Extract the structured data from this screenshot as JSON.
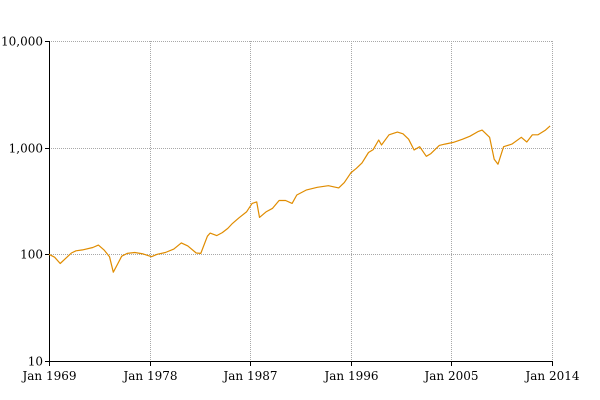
{
  "chart_data": {
    "type": "line",
    "title": "",
    "xlabel": "",
    "ylabel": "",
    "yscale": "log",
    "ylim": [
      10,
      10000
    ],
    "xlim": [
      "1969-01",
      "2014-01"
    ],
    "grid": true,
    "legend": "none",
    "x_ticks": [
      "Jan 1969",
      "Jan 1978",
      "Jan 1987",
      "Jan 1996",
      "Jan 2005",
      "Jan 2014"
    ],
    "y_ticks": [
      "10",
      "100",
      "1,000",
      "10,000"
    ],
    "y_tick_values": [
      10,
      100,
      1000,
      10000
    ],
    "colors": {
      "series": "#e08c00",
      "grid": "#a8a8a8",
      "axis": "#000000"
    },
    "series": [
      {
        "x": [
          "1969-01",
          "1969-07",
          "1970-01",
          "1970-06",
          "1971-01",
          "1971-06",
          "1972-01",
          "1972-12",
          "1973-06",
          "1973-12",
          "1974-06",
          "1974-10",
          "1975-03",
          "1975-07",
          "1976-01",
          "1976-09",
          "1977-06",
          "1978-03",
          "1978-09",
          "1979-06",
          "1980-03",
          "1980-11",
          "1981-06",
          "1982-03",
          "1982-08",
          "1983-03",
          "1983-06",
          "1984-01",
          "1984-07",
          "1985-01",
          "1985-06",
          "1986-01",
          "1986-09",
          "1987-03",
          "1987-08",
          "1987-11",
          "1988-06",
          "1989-01",
          "1989-08",
          "1990-03",
          "1990-10",
          "1991-03",
          "1992-01",
          "1993-01",
          "1994-01",
          "1994-12",
          "1995-06",
          "1996-01",
          "1996-07",
          "1997-01",
          "1997-08",
          "1998-01",
          "1998-07",
          "1998-10",
          "1999-06",
          "2000-03",
          "2000-09",
          "2001-03",
          "2001-09",
          "2002-03",
          "2002-10",
          "2003-03",
          "2003-12",
          "2004-06",
          "2005-03",
          "2006-01",
          "2006-09",
          "2007-06",
          "2007-10",
          "2008-06",
          "2008-11",
          "2009-03",
          "2009-09",
          "2010-06",
          "2011-04",
          "2011-10",
          "2012-04",
          "2012-10",
          "2013-06",
          "2013-11"
        ],
        "values": [
          100,
          94,
          82,
          90,
          103,
          108,
          110,
          116,
          122,
          110,
          95,
          68,
          82,
          96,
          102,
          104,
          101,
          95,
          100,
          104,
          112,
          128,
          120,
          103,
          102,
          148,
          158,
          150,
          160,
          175,
          195,
          220,
          250,
          300,
          310,
          222,
          250,
          270,
          320,
          320,
          300,
          360,
          400,
          425,
          440,
          420,
          470,
          580,
          640,
          720,
          900,
          960,
          1180,
          1060,
          1320,
          1400,
          1350,
          1200,
          950,
          1020,
          830,
          880,
          1050,
          1080,
          1120,
          1200,
          1280,
          1420,
          1460,
          1250,
          780,
          700,
          1020,
          1080,
          1250,
          1130,
          1320,
          1320,
          1460,
          1600
        ]
      }
    ]
  }
}
